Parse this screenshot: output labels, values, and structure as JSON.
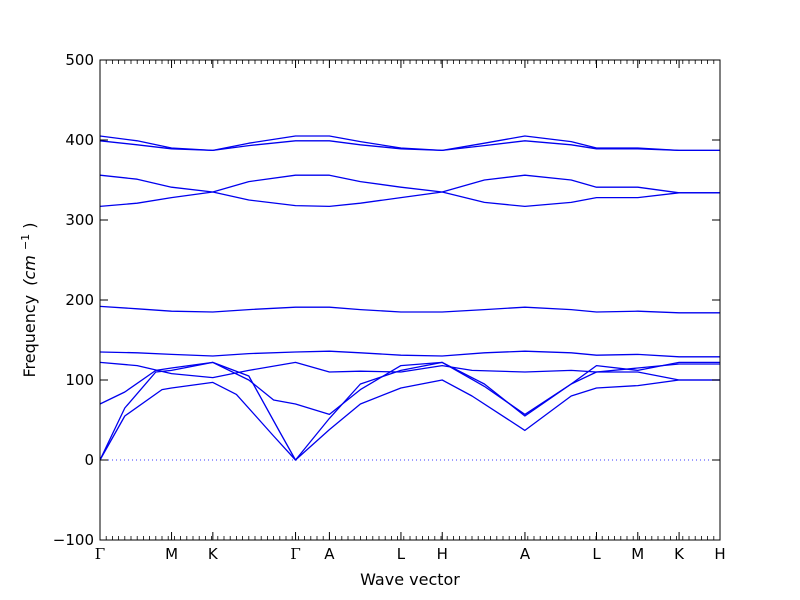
{
  "chart_data": {
    "type": "line",
    "xlabel": "Wave vector",
    "ylabel": "Frequency",
    "ylabel_unit": "(cm",
    "ylabel_exp": "−1",
    "ylabel_close": ")",
    "ylim": [
      -100,
      500
    ],
    "yticks": [
      -100,
      0,
      100,
      200,
      300,
      400,
      500
    ],
    "ytick_labels": [
      "−100",
      "0",
      "100",
      "200",
      "300",
      "400",
      "500"
    ],
    "zero_line": 0,
    "line_color": "#0000ee",
    "zero_line_color": "#3b3bff",
    "grid": false,
    "path": {
      "labels": [
        "Γ",
        "M",
        "K",
        "Γ",
        "A",
        "L",
        "H",
        "A",
        "L",
        "M",
        "K",
        "H"
      ],
      "positions": [
        0,
        0.577,
        0.91,
        1.577,
        1.85,
        2.427,
        2.76,
        3.427,
        4.004,
        4.337,
        4.67,
        5.0
      ]
    },
    "series": [
      {
        "x": [
          0,
          0.2,
          0.5,
          0.577,
          0.91,
          1.1,
          1.4,
          1.577,
          1.85,
          2.1,
          2.427,
          2.76,
          3.0,
          3.427,
          3.8,
          4.004,
          4.337,
          4.67,
          5.0
        ],
        "values": [
          0,
          55,
          88,
          90,
          97,
          82,
          30,
          0,
          38,
          70,
          90,
          100,
          80,
          37,
          80,
          90,
          93,
          100,
          100
        ]
      },
      {
        "x": [
          0,
          0.2,
          0.45,
          0.577,
          0.91,
          1.2,
          1.45,
          1.577,
          1.85,
          2.1,
          2.427,
          2.76,
          3.1,
          3.427,
          3.8,
          4.004,
          4.337,
          4.67,
          5.0
        ],
        "values": [
          0,
          65,
          110,
          112,
          122,
          105,
          35,
          0,
          52,
          95,
          112,
          122,
          95,
          55,
          95,
          110,
          115,
          120,
          120
        ]
      },
      {
        "x": [
          0,
          0.2,
          0.45,
          0.577,
          0.91,
          1.2,
          1.4,
          1.577,
          1.85,
          2.1,
          2.427,
          2.76,
          3.1,
          3.427,
          3.8,
          4.004,
          4.337,
          4.67,
          5.0
        ],
        "values": [
          70,
          85,
          112,
          115,
          122,
          100,
          75,
          70,
          57,
          88,
          118,
          122,
          92,
          57,
          95,
          118,
          112,
          122,
          122
        ]
      },
      {
        "x": [
          0,
          0.3,
          0.577,
          0.91,
          1.2,
          1.577,
          1.85,
          2.1,
          2.427,
          2.76,
          3.0,
          3.427,
          3.8,
          4.004,
          4.337,
          4.67,
          5.0
        ],
        "values": [
          122,
          118,
          108,
          103,
          112,
          122,
          110,
          111,
          110,
          118,
          112,
          110,
          112,
          110,
          110,
          100,
          100
        ]
      },
      {
        "x": [
          0,
          0.3,
          0.577,
          0.91,
          1.2,
          1.577,
          1.85,
          2.1,
          2.427,
          2.76,
          3.1,
          3.427,
          3.8,
          4.004,
          4.337,
          4.67,
          5.0
        ],
        "values": [
          135,
          134,
          132,
          130,
          133,
          135,
          136,
          134,
          131,
          130,
          134,
          136,
          134,
          131,
          132,
          129,
          129
        ]
      },
      {
        "x": [
          0,
          0.3,
          0.577,
          0.91,
          1.2,
          1.577,
          1.85,
          2.1,
          2.427,
          2.76,
          3.1,
          3.427,
          3.8,
          4.004,
          4.337,
          4.67,
          5.0
        ],
        "values": [
          192,
          189,
          186,
          185,
          188,
          191,
          191,
          188,
          185,
          185,
          188,
          191,
          188,
          185,
          186,
          184,
          184
        ]
      },
      {
        "x": [
          0,
          0.3,
          0.577,
          0.91,
          1.2,
          1.577,
          1.85,
          2.1,
          2.427,
          2.76,
          3.1,
          3.427,
          3.8,
          4.004,
          4.337,
          4.67,
          5.0
        ],
        "values": [
          317,
          321,
          328,
          335,
          348,
          356,
          356,
          348,
          341,
          335,
          322,
          317,
          322,
          328,
          328,
          334,
          334
        ]
      },
      {
        "x": [
          0,
          0.3,
          0.577,
          0.91,
          1.2,
          1.577,
          1.85,
          2.1,
          2.427,
          2.76,
          3.1,
          3.427,
          3.8,
          4.004,
          4.337,
          4.67,
          5.0
        ],
        "values": [
          356,
          351,
          341,
          335,
          325,
          318,
          317,
          321,
          328,
          335,
          350,
          356,
          350,
          341,
          341,
          334,
          334
        ]
      },
      {
        "x": [
          0,
          0.3,
          0.577,
          0.91,
          1.2,
          1.577,
          1.85,
          2.1,
          2.427,
          2.76,
          3.1,
          3.427,
          3.8,
          4.004,
          4.337,
          4.67,
          5.0
        ],
        "values": [
          399,
          394,
          389,
          387,
          393,
          399,
          399,
          394,
          389,
          387,
          393,
          399,
          394,
          389,
          389,
          387,
          387
        ]
      },
      {
        "x": [
          0,
          0.3,
          0.577,
          0.91,
          1.2,
          1.577,
          1.85,
          2.1,
          2.427,
          2.76,
          3.1,
          3.427,
          3.8,
          4.004,
          4.337,
          4.67,
          5.0
        ],
        "values": [
          405,
          399,
          390,
          387,
          396,
          405,
          405,
          398,
          390,
          387,
          396,
          405,
          398,
          390,
          390,
          387,
          387
        ]
      }
    ]
  }
}
